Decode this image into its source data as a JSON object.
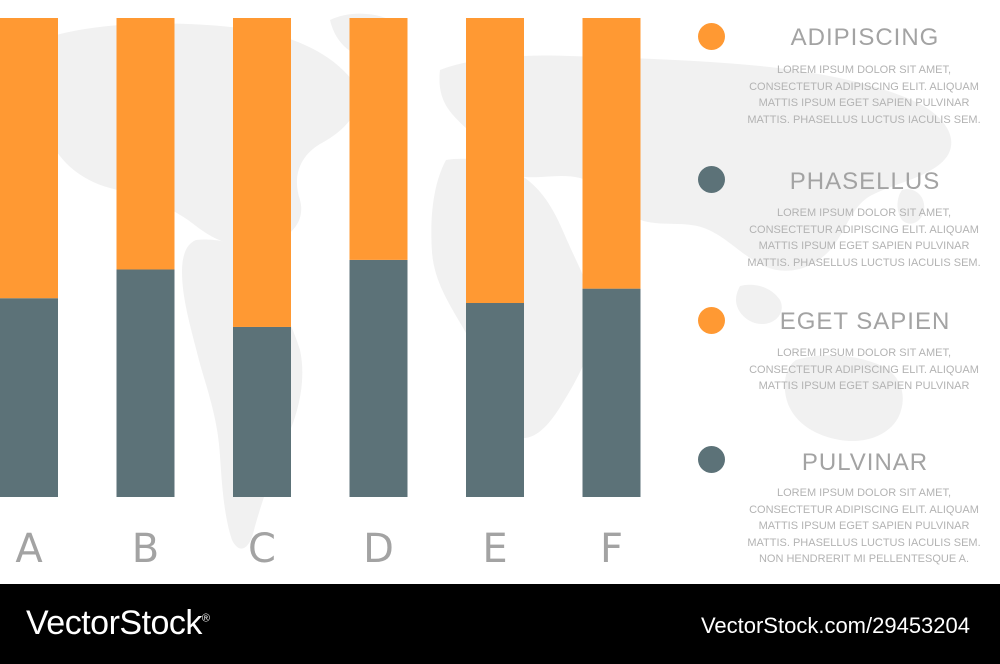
{
  "chart_data": {
    "type": "bar",
    "stacked": true,
    "categories": [
      "A",
      "B",
      "C",
      "D",
      "E",
      "F"
    ],
    "series": [
      {
        "values": [
          41.5,
          47.5,
          35.5,
          49.5,
          40.5,
          43.5
        ]
      },
      {
        "values": [
          58.5,
          52.5,
          64.5,
          50.5,
          59.5,
          56.5
        ]
      }
    ],
    "ylim": [
      0,
      100
    ]
  },
  "colors": {
    "accent": "#ff9933",
    "secondary": "#5c7278",
    "labels": "#a3a3a3",
    "map": "#f1f1f1"
  },
  "legend": [
    {
      "color": "#ff9933",
      "title": "ADIPISCING",
      "text": "LOREM IPSUM DOLOR SIT AMET,\nCONSECTETUR ADIPISCING ELIT. ALIQUAM\nMATTIS IPSUM EGET SAPIEN PULVINAR\nMATTIS. PHASELLUS LUCTUS IACULIS SEM."
    },
    {
      "color": "#5c7278",
      "title": "PHASELLUS",
      "text": "LOREM IPSUM DOLOR SIT AMET,\nCONSECTETUR ADIPISCING ELIT. ALIQUAM\nMATTIS IPSUM EGET SAPIEN PULVINAR\nMATTIS. PHASELLUS LUCTUS IACULIS SEM."
    },
    {
      "color": "#ff9933",
      "title": "EGET SAPIEN",
      "text": "LOREM IPSUM DOLOR SIT AMET,\nCONSECTETUR ADIPISCING ELIT. ALIQUAM\nMATTIS IPSUM EGET SAPIEN PULVINAR"
    },
    {
      "color": "#5c7278",
      "title": "PULVINAR",
      "text": "LOREM IPSUM DOLOR SIT AMET,\nCONSECTETUR ADIPISCING ELIT. ALIQUAM\nMATTIS IPSUM EGET SAPIEN PULVINAR\nMATTIS. PHASELLUS LUCTUS IACULIS SEM.\nNON HENDRERIT MI PELLENTESQUE A."
    }
  ],
  "footer": {
    "brand": "VectorStock",
    "registered": "®",
    "credit": "VectorStock.com/29453204"
  }
}
